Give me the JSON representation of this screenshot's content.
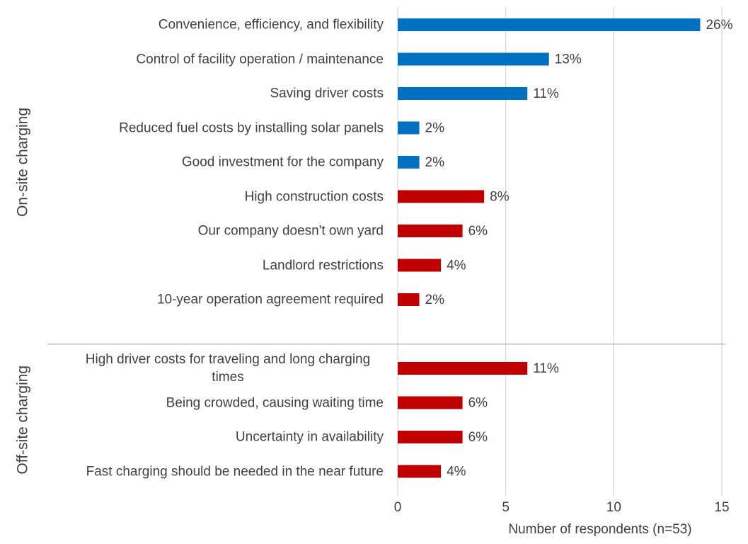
{
  "chart_data": {
    "type": "bar",
    "orientation": "horizontal",
    "xlabel": "Number of respondents (n=53)",
    "xlim": [
      0,
      15
    ],
    "xticks": [
      0,
      5,
      10,
      15
    ],
    "grid": true,
    "groups": [
      {
        "name": "On-site charging",
        "categories": [
          "Convenience, efficiency, and flexibility",
          "Control of facility operation / maintenance",
          "Saving driver costs",
          "Reduced fuel costs by installing solar panels",
          "Good investment for the company",
          "High construction costs",
          "Our company doesn't own yard",
          "Landlord restrictions",
          "10-year operation agreement required"
        ],
        "values": [
          14,
          7,
          6,
          1,
          1,
          4,
          3,
          2,
          1
        ],
        "value_labels": [
          "26%",
          "13%",
          "11%",
          "2%",
          "2%",
          "8%",
          "6%",
          "4%",
          "2%"
        ],
        "colors": [
          "#0070c0",
          "#0070c0",
          "#0070c0",
          "#0070c0",
          "#0070c0",
          "#c00000",
          "#c00000",
          "#c00000",
          "#c00000"
        ]
      },
      {
        "name": "Off-site charging",
        "categories": [
          "High driver costs for traveling and long charging times",
          "Being crowded, causing waiting time",
          "Uncertainty in availability",
          "Fast charging should be needed in the near future"
        ],
        "values": [
          6,
          3,
          3,
          2
        ],
        "value_labels": [
          "11%",
          "6%",
          "6%",
          "4%"
        ],
        "colors": [
          "#c00000",
          "#c00000",
          "#c00000",
          "#c00000"
        ]
      }
    ]
  }
}
